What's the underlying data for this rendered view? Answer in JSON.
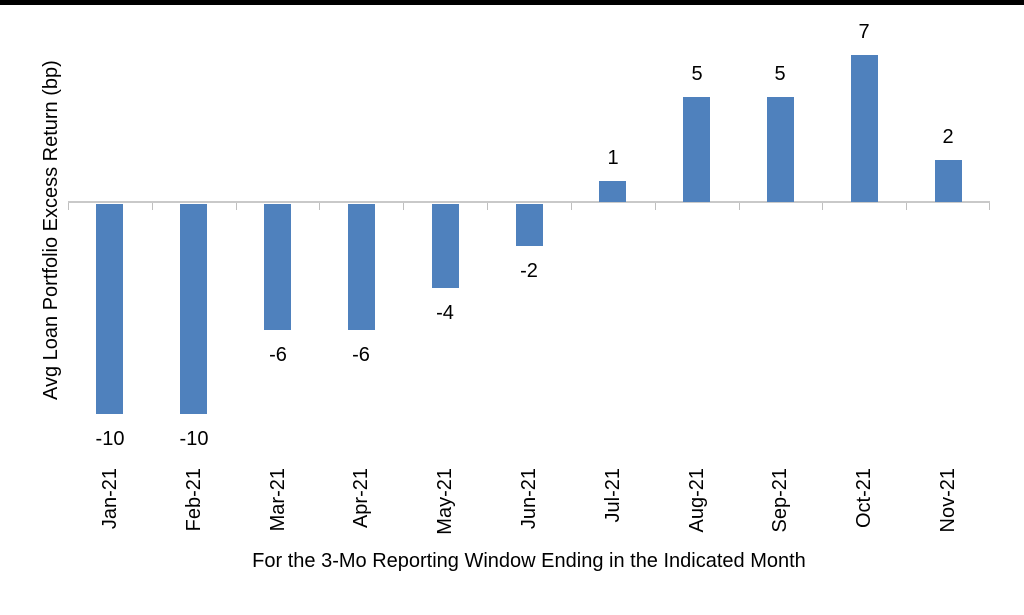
{
  "page": {
    "background": "#ffffff",
    "top_border_color": "#000000"
  },
  "chart_data": {
    "type": "bar",
    "categories": [
      "Jan-21",
      "Feb-21",
      "Mar-21",
      "Apr-21",
      "May-21",
      "Jun-21",
      "Jul-21",
      "Aug-21",
      "Sep-21",
      "Oct-21",
      "Nov-21"
    ],
    "values": [
      -10,
      -10,
      -6,
      -6,
      -4,
      -2,
      1,
      5,
      5,
      7,
      2
    ],
    "title": "",
    "xlabel": "For the 3-Mo Reporting Window Ending in the Indicated Month",
    "ylabel": "Avg Loan Portfolio Excess Return (bp)",
    "ylim": [
      -10.5,
      7.5
    ],
    "bar_color": "#4f81bd",
    "axis_line_color": "#c9c9c9",
    "tick_color": "#bfbfbf",
    "label_color": "#000000",
    "gridlines": false,
    "y_tick_labels_visible": false,
    "data_labels_visible": true,
    "legend": "none"
  }
}
